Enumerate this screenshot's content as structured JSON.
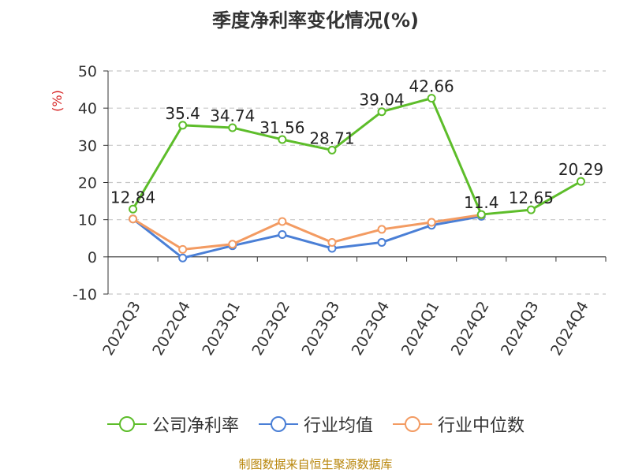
{
  "title": "季度净利率变化情况(%)",
  "source_note": "制图数据来自恒生聚源数据库",
  "chart_data": {
    "type": "line",
    "categories": [
      "2022Q3",
      "2022Q4",
      "2023Q1",
      "2023Q2",
      "2023Q3",
      "2023Q4",
      "2024Q1",
      "2024Q2",
      "2024Q3",
      "2024Q4"
    ],
    "ylabel": "(%)",
    "ylim": [
      -10,
      50
    ],
    "yticks": [
      50,
      40,
      30,
      20,
      10,
      0,
      -10
    ],
    "grid": true,
    "legend_position": "bottom",
    "series": [
      {
        "name": "公司净利率",
        "color": "#5dbd2a",
        "values": [
          12.84,
          35.4,
          34.74,
          31.56,
          28.71,
          39.04,
          42.66,
          11.4,
          12.65,
          20.29
        ],
        "labels": [
          "12.84",
          "35.4",
          "34.74",
          "31.56",
          "28.71",
          "39.04",
          "42.66",
          "11.4",
          "12.65",
          "20.29"
        ]
      },
      {
        "name": "行业均值",
        "color": "#4a7fd6",
        "values": [
          10.2,
          -0.3,
          3.0,
          6.0,
          2.3,
          3.9,
          8.5,
          10.9,
          null,
          null
        ]
      },
      {
        "name": "行业中位数",
        "color": "#f39b62",
        "values": [
          10.2,
          2.0,
          3.4,
          9.5,
          3.9,
          7.4,
          9.3,
          11.3,
          null,
          null
        ]
      }
    ]
  }
}
